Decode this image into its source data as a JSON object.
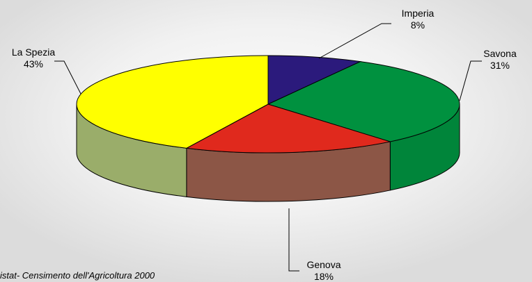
{
  "chart_data": {
    "type": "pie3d",
    "categories": [
      "Imperia",
      "Savona",
      "Genova",
      "La Spezia"
    ],
    "values": [
      8,
      31,
      18,
      43
    ],
    "value_labels": [
      "8%",
      "31%",
      "18%",
      "43%"
    ],
    "colors": [
      "#2b1a7c",
      "#00913f",
      "#e0291d",
      "#ffff00"
    ],
    "side_colors": [
      "#1f1360",
      "#00853a",
      "#8c5646",
      "#9aad6a"
    ],
    "source": "istat- Censimento dell'Agricoltura  2000"
  }
}
